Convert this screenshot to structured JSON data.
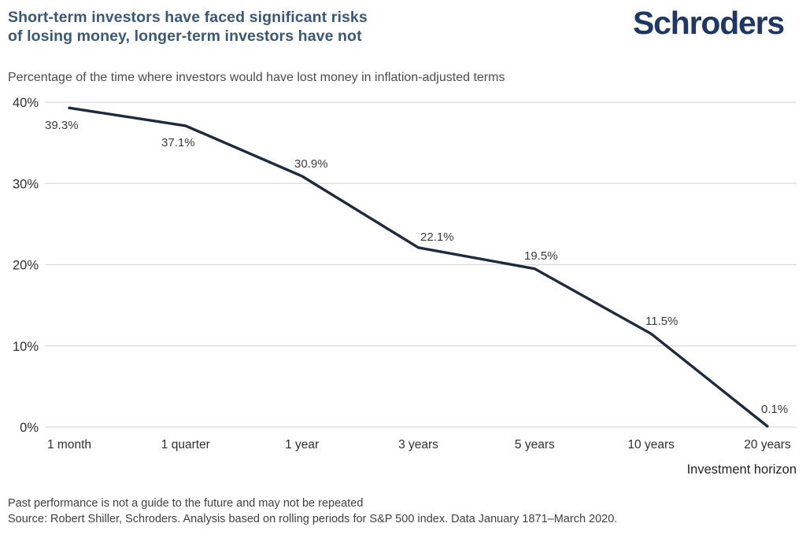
{
  "header": {
    "title_line1": "Short-term investors have faced significant risks",
    "title_line2": "of losing money, longer-term investors have not",
    "logo": "Schroders"
  },
  "subtitle": "Percentage of the time where investors would have lost money in inflation-adjusted terms",
  "chart_data": {
    "type": "line",
    "title": "Short-term investors have faced significant risks of losing money, longer-term investors have not",
    "subtitle": "Percentage of the time where investors would have lost money in inflation-adjusted terms",
    "categories": [
      "1 month",
      "1 quarter",
      "1 year",
      "3 years",
      "5 years",
      "10 years",
      "20 years"
    ],
    "values": [
      39.3,
      37.1,
      30.9,
      22.1,
      19.5,
      11.5,
      0.1
    ],
    "value_labels": [
      "39.3%",
      "37.1%",
      "30.9%",
      "22.1%",
      "19.5%",
      "11.5%",
      "0.1%"
    ],
    "y_ticks": [
      40,
      30,
      20,
      10,
      0
    ],
    "y_tick_labels": [
      "40%",
      "30%",
      "20%",
      "10%",
      "0%"
    ],
    "ylim": [
      0,
      40
    ],
    "xlabel": "Investment horizon",
    "ylabel": "",
    "grid": true,
    "legend": false,
    "line_color": "#1c2b3d"
  },
  "footer": {
    "line1": "Past performance is not a guide to the future and may not be repeated",
    "line2": "Source: Robert Shiller, Schroders. Analysis based on rolling periods for S&P 500 index. Data January 1871–March 2020."
  },
  "colors": {
    "title": "#3b5877",
    "logo": "#1e3764",
    "subtitle": "#4b4b4b",
    "gridline": "#d9d9d9",
    "tick_label": "#2e2e2e",
    "data_label": "#3a3a3a",
    "xlabel": "#222222",
    "footer": "#3f3f3f",
    "line": "#1c2b3d"
  }
}
